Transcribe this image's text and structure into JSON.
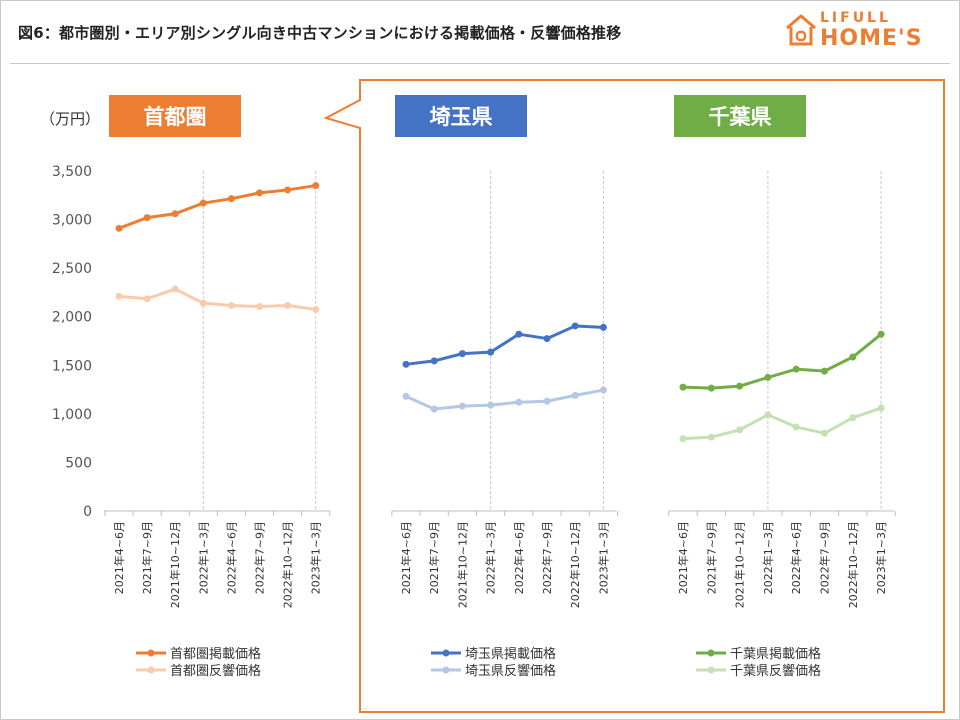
{
  "header": {
    "title": "図6：都市圏別・エリア別シングル向き中古マンションにおける掲載価格・反響価格推移",
    "logo_top": "LIFULL",
    "logo_bottom": "HOME'S"
  },
  "colors": {
    "capital": "#ed7d31",
    "capital_light": "#f8cbad",
    "saitama": "#4472c4",
    "saitama_light": "#b4c7e7",
    "chiba": "#70ad47",
    "chiba_light": "#c5e0b4",
    "callout_border": "#ed7d31"
  },
  "unit_label": "（万円）",
  "chart_data": [
    {
      "type": "line",
      "title": "首都圏",
      "categories": [
        "2021年4~6月",
        "2021年7~9月",
        "2021年10~12月",
        "2022年1~3月",
        "2022年4~6月",
        "2022年7~9月",
        "2022年10~12月",
        "2023年1~3月"
      ],
      "ylim": [
        0,
        3500
      ],
      "yticks": [
        "0",
        "500",
        "1,000",
        "1,500",
        "2,000",
        "2,500",
        "3,000",
        "3,500"
      ],
      "series": [
        {
          "name": "首都圏掲載価格",
          "values": [
            2910,
            3020,
            3060,
            3170,
            3215,
            3275,
            3305,
            3350
          ]
        },
        {
          "name": "首都圏反響価格",
          "values": [
            2210,
            2185,
            2285,
            2140,
            2115,
            2105,
            2115,
            2075
          ]
        }
      ]
    },
    {
      "type": "line",
      "title": "埼玉県",
      "categories": [
        "2021年4~6月",
        "2021年7~9月",
        "2021年10~12月",
        "2022年1~3月",
        "2022年4~6月",
        "2022年7~9月",
        "2022年10~12月",
        "2023年1~3月"
      ],
      "ylim": [
        0,
        3500
      ],
      "series": [
        {
          "name": "埼玉県掲載価格",
          "values": [
            1510,
            1545,
            1620,
            1635,
            1820,
            1775,
            1905,
            1890
          ]
        },
        {
          "name": "埼玉県反響価格",
          "values": [
            1180,
            1050,
            1080,
            1090,
            1120,
            1130,
            1190,
            1245
          ]
        }
      ]
    },
    {
      "type": "line",
      "title": "千葉県",
      "categories": [
        "2021年4~6月",
        "2021年7~9月",
        "2021年10~12月",
        "2022年1~3月",
        "2022年4~6月",
        "2022年7~9月",
        "2022年10~12月",
        "2023年1~3月"
      ],
      "ylim": [
        0,
        3500
      ],
      "series": [
        {
          "name": "千葉県掲載価格",
          "values": [
            1275,
            1265,
            1285,
            1375,
            1460,
            1440,
            1585,
            1820
          ]
        },
        {
          "name": "千葉県反響価格",
          "values": [
            745,
            760,
            835,
            990,
            865,
            800,
            960,
            1060
          ]
        }
      ]
    }
  ]
}
